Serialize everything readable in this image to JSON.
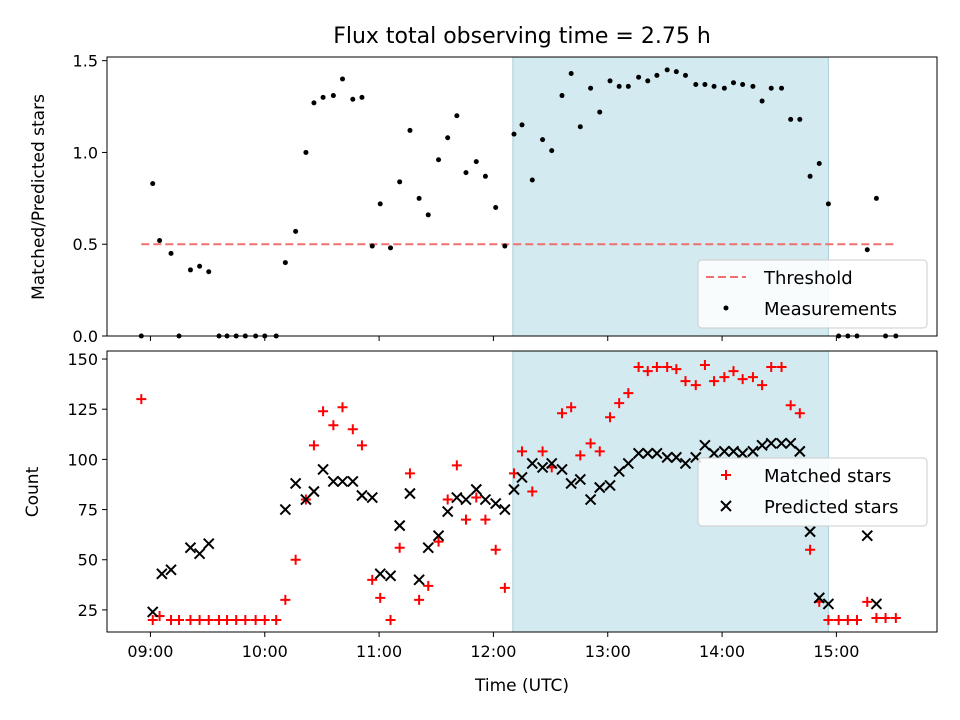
{
  "chart_data": {
    "title": "Flux total observing time = 2.75 h",
    "xlabel": "Time (UTC)",
    "x_unit": "hours UTC",
    "xlim": [
      8.62,
      15.88
    ],
    "xticks": [
      9,
      10,
      11,
      12,
      13,
      14,
      15
    ],
    "xtick_labels": [
      "09:00",
      "10:00",
      "11:00",
      "12:00",
      "13:00",
      "14:00",
      "15:00"
    ],
    "shaded_interval": {
      "x": [
        12.17,
        14.93
      ],
      "color": "#d4eaf1"
    },
    "panels": [
      {
        "type": "scatter",
        "ylabel": "Matched/Predicted stars",
        "ylim": [
          0,
          1.52
        ],
        "yticks": [
          0.0,
          0.5,
          1.0,
          1.5
        ],
        "ytick_labels": [
          "0.0",
          "0.5",
          "1.0",
          "1.5"
        ],
        "legend": {
          "placement": "lower-right",
          "entries": [
            "Threshold",
            "Measurements"
          ]
        },
        "series": [
          {
            "name": "Threshold",
            "kind": "dashed-line",
            "color": "#f07070",
            "x": [
              8.92,
              15.52
            ],
            "y": [
              0.5,
              0.5
            ]
          },
          {
            "name": "Measurements",
            "kind": "dot",
            "color": "#000000",
            "points": [
              [
                8.92,
                0.0
              ],
              [
                9.02,
                0.83
              ],
              [
                9.08,
                0.52
              ],
              [
                9.18,
                0.45
              ],
              [
                9.25,
                0.0
              ],
              [
                9.35,
                0.36
              ],
              [
                9.43,
                0.38
              ],
              [
                9.51,
                0.35
              ],
              [
                9.6,
                0.0
              ],
              [
                9.67,
                0.0
              ],
              [
                9.75,
                0.0
              ],
              [
                9.83,
                0.0
              ],
              [
                9.92,
                0.0
              ],
              [
                10.0,
                0.0
              ],
              [
                10.1,
                0.0
              ],
              [
                10.18,
                0.4
              ],
              [
                10.27,
                0.57
              ],
              [
                10.36,
                1.0
              ],
              [
                10.43,
                1.27
              ],
              [
                10.51,
                1.3
              ],
              [
                10.6,
                1.31
              ],
              [
                10.68,
                1.4
              ],
              [
                10.77,
                1.29
              ],
              [
                10.85,
                1.3
              ],
              [
                10.94,
                0.49
              ],
              [
                11.01,
                0.72
              ],
              [
                11.1,
                0.48
              ],
              [
                11.18,
                0.84
              ],
              [
                11.27,
                1.12
              ],
              [
                11.35,
                0.75
              ],
              [
                11.43,
                0.66
              ],
              [
                11.52,
                0.96
              ],
              [
                11.6,
                1.08
              ],
              [
                11.68,
                1.2
              ],
              [
                11.76,
                0.89
              ],
              [
                11.85,
                0.95
              ],
              [
                11.93,
                0.87
              ],
              [
                12.02,
                0.7
              ],
              [
                12.1,
                0.49
              ],
              [
                12.18,
                1.1
              ],
              [
                12.25,
                1.15
              ],
              [
                12.34,
                0.85
              ],
              [
                12.43,
                1.07
              ],
              [
                12.51,
                1.01
              ],
              [
                12.6,
                1.31
              ],
              [
                12.68,
                1.43
              ],
              [
                12.76,
                1.14
              ],
              [
                12.85,
                1.35
              ],
              [
                12.93,
                1.22
              ],
              [
                13.02,
                1.39
              ],
              [
                13.1,
                1.36
              ],
              [
                13.18,
                1.36
              ],
              [
                13.27,
                1.41
              ],
              [
                13.35,
                1.39
              ],
              [
                13.43,
                1.42
              ],
              [
                13.52,
                1.45
              ],
              [
                13.6,
                1.44
              ],
              [
                13.68,
                1.42
              ],
              [
                13.77,
                1.37
              ],
              [
                13.85,
                1.37
              ],
              [
                13.93,
                1.36
              ],
              [
                14.02,
                1.35
              ],
              [
                14.1,
                1.38
              ],
              [
                14.18,
                1.37
              ],
              [
                14.27,
                1.36
              ],
              [
                14.35,
                1.28
              ],
              [
                14.43,
                1.35
              ],
              [
                14.52,
                1.35
              ],
              [
                14.6,
                1.18
              ],
              [
                14.68,
                1.18
              ],
              [
                14.77,
                0.87
              ],
              [
                14.85,
                0.94
              ],
              [
                14.93,
                0.72
              ],
              [
                15.02,
                0.0
              ],
              [
                15.1,
                0.0
              ],
              [
                15.18,
                0.0
              ],
              [
                15.27,
                0.47
              ],
              [
                15.35,
                0.75
              ],
              [
                15.43,
                0.0
              ],
              [
                15.52,
                0.0
              ]
            ]
          }
        ]
      },
      {
        "type": "scatter",
        "ylabel": "Count",
        "ylim": [
          14,
          154
        ],
        "yticks": [
          25,
          50,
          75,
          100,
          125,
          150
        ],
        "ytick_labels": [
          "25",
          "50",
          "75",
          "100",
          "125",
          "150"
        ],
        "legend": {
          "placement": "right",
          "entries": [
            "Matched stars",
            "Predicted stars"
          ]
        },
        "series": [
          {
            "name": "Matched stars",
            "kind": "plus",
            "color": "#ff0000",
            "points": [
              [
                8.92,
                130
              ],
              [
                9.02,
                20
              ],
              [
                9.08,
                22
              ],
              [
                9.18,
                20
              ],
              [
                9.25,
                20
              ],
              [
                9.35,
                20
              ],
              [
                9.43,
                20
              ],
              [
                9.51,
                20
              ],
              [
                9.6,
                20
              ],
              [
                9.67,
                20
              ],
              [
                9.75,
                20
              ],
              [
                9.83,
                20
              ],
              [
                9.92,
                20
              ],
              [
                10.0,
                20
              ],
              [
                10.1,
                20
              ],
              [
                10.18,
                30
              ],
              [
                10.27,
                50
              ],
              [
                10.36,
                80
              ],
              [
                10.43,
                107
              ],
              [
                10.51,
                124
              ],
              [
                10.6,
                117
              ],
              [
                10.68,
                126
              ],
              [
                10.77,
                115
              ],
              [
                10.85,
                107
              ],
              [
                10.94,
                40
              ],
              [
                11.01,
                31
              ],
              [
                11.1,
                20
              ],
              [
                11.18,
                56
              ],
              [
                11.27,
                93
              ],
              [
                11.35,
                30
              ],
              [
                11.43,
                37
              ],
              [
                11.52,
                59
              ],
              [
                11.6,
                80
              ],
              [
                11.68,
                97
              ],
              [
                11.76,
                70
              ],
              [
                11.85,
                81
              ],
              [
                11.93,
                70
              ],
              [
                12.02,
                55
              ],
              [
                12.1,
                36
              ],
              [
                12.18,
                93
              ],
              [
                12.25,
                104
              ],
              [
                12.34,
                84
              ],
              [
                12.43,
                104
              ],
              [
                12.51,
                96
              ],
              [
                12.6,
                123
              ],
              [
                12.68,
                126
              ],
              [
                12.76,
                102
              ],
              [
                12.85,
                108
              ],
              [
                12.93,
                104
              ],
              [
                13.02,
                121
              ],
              [
                13.1,
                128
              ],
              [
                13.18,
                133
              ],
              [
                13.27,
                146
              ],
              [
                13.35,
                144
              ],
              [
                13.43,
                146
              ],
              [
                13.52,
                146
              ],
              [
                13.6,
                145
              ],
              [
                13.68,
                139
              ],
              [
                13.77,
                137
              ],
              [
                13.85,
                147
              ],
              [
                13.93,
                139
              ],
              [
                14.02,
                141
              ],
              [
                14.1,
                144
              ],
              [
                14.18,
                140
              ],
              [
                14.27,
                141
              ],
              [
                14.35,
                137
              ],
              [
                14.43,
                146
              ],
              [
                14.52,
                146
              ],
              [
                14.6,
                127
              ],
              [
                14.68,
                123
              ],
              [
                14.77,
                55
              ],
              [
                14.85,
                29
              ],
              [
                14.93,
                20
              ],
              [
                15.02,
                20
              ],
              [
                15.1,
                20
              ],
              [
                15.18,
                20
              ],
              [
                15.27,
                29
              ],
              [
                15.35,
                21
              ],
              [
                15.43,
                21
              ],
              [
                15.52,
                21
              ]
            ]
          },
          {
            "name": "Predicted stars",
            "kind": "cross",
            "color": "#000000",
            "points": [
              [
                9.02,
                24
              ],
              [
                9.1,
                43
              ],
              [
                9.18,
                45
              ],
              [
                9.35,
                56
              ],
              [
                9.43,
                53
              ],
              [
                9.51,
                58
              ],
              [
                10.18,
                75
              ],
              [
                10.27,
                88
              ],
              [
                10.36,
                80
              ],
              [
                10.43,
                84
              ],
              [
                10.51,
                95
              ],
              [
                10.6,
                89
              ],
              [
                10.68,
                89
              ],
              [
                10.77,
                89
              ],
              [
                10.85,
                82
              ],
              [
                10.94,
                81
              ],
              [
                11.01,
                43
              ],
              [
                11.1,
                42
              ],
              [
                11.18,
                67
              ],
              [
                11.27,
                83
              ],
              [
                11.35,
                40
              ],
              [
                11.43,
                56
              ],
              [
                11.52,
                62
              ],
              [
                11.6,
                74
              ],
              [
                11.68,
                81
              ],
              [
                11.76,
                80
              ],
              [
                11.85,
                85
              ],
              [
                11.93,
                80
              ],
              [
                12.02,
                78
              ],
              [
                12.1,
                75
              ],
              [
                12.18,
                85
              ],
              [
                12.25,
                91
              ],
              [
                12.34,
                98
              ],
              [
                12.43,
                96
              ],
              [
                12.51,
                98
              ],
              [
                12.6,
                95
              ],
              [
                12.68,
                88
              ],
              [
                12.76,
                90
              ],
              [
                12.85,
                80
              ],
              [
                12.93,
                86
              ],
              [
                13.02,
                87
              ],
              [
                13.1,
                94
              ],
              [
                13.18,
                98
              ],
              [
                13.27,
                103
              ],
              [
                13.35,
                103
              ],
              [
                13.43,
                103
              ],
              [
                13.52,
                101
              ],
              [
                13.6,
                101
              ],
              [
                13.68,
                98
              ],
              [
                13.77,
                101
              ],
              [
                13.85,
                107
              ],
              [
                13.93,
                103
              ],
              [
                14.02,
                104
              ],
              [
                14.1,
                104
              ],
              [
                14.18,
                103
              ],
              [
                14.27,
                104
              ],
              [
                14.35,
                107
              ],
              [
                14.43,
                108
              ],
              [
                14.52,
                108
              ],
              [
                14.6,
                108
              ],
              [
                14.68,
                104
              ],
              [
                14.77,
                64
              ],
              [
                14.85,
                31
              ],
              [
                14.93,
                28
              ],
              [
                15.27,
                62
              ],
              [
                15.35,
                28
              ]
            ]
          }
        ]
      }
    ]
  }
}
